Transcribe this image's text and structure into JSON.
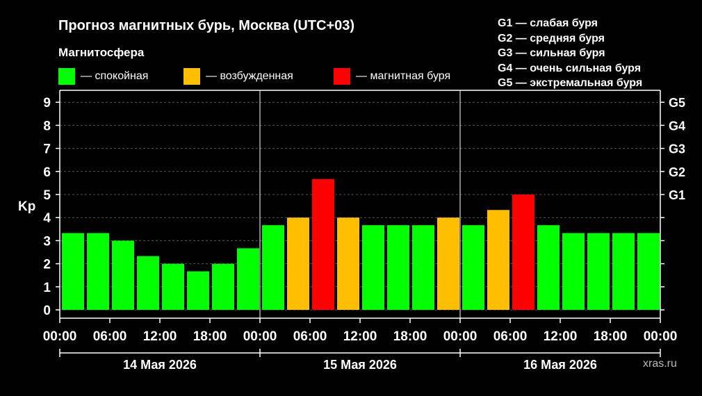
{
  "chart_data": {
    "type": "bar",
    "title": "Прогноз магнитных бурь, Москва (UTC+03)",
    "subtitle": "Магнитосфера",
    "ylabel": "Kp",
    "ylim": [
      0,
      9
    ],
    "yticks": [
      "0",
      "1",
      "2",
      "3",
      "4",
      "5",
      "6",
      "7",
      "8",
      "9"
    ],
    "right_ticks": [
      {
        "label": "G1",
        "value": 5
      },
      {
        "label": "G2",
        "value": 6
      },
      {
        "label": "G3",
        "value": 7
      },
      {
        "label": "G4",
        "value": 8
      },
      {
        "label": "G5",
        "value": 9
      }
    ],
    "xtick_labels": [
      "00:00",
      "06:00",
      "12:00",
      "18:00",
      "00:00",
      "06:00",
      "12:00",
      "18:00",
      "00:00",
      "06:00",
      "12:00",
      "18:00",
      "00:00"
    ],
    "days": [
      "14 Мая 2026",
      "15 Мая 2026",
      "16 Мая 2026"
    ],
    "categories": [
      "14 00:00",
      "14 03:00",
      "14 06:00",
      "14 09:00",
      "14 12:00",
      "14 15:00",
      "14 18:00",
      "14 21:00",
      "15 00:00",
      "15 03:00",
      "15 06:00",
      "15 09:00",
      "15 12:00",
      "15 15:00",
      "15 18:00",
      "15 21:00",
      "16 00:00",
      "16 03:00",
      "16 06:00",
      "16 09:00",
      "16 12:00",
      "16 15:00",
      "16 18:00",
      "16 21:00"
    ],
    "values": [
      3.33,
      3.33,
      3.0,
      2.33,
      2.0,
      1.67,
      2.0,
      2.67,
      3.67,
      4.0,
      5.67,
      4.0,
      3.67,
      3.67,
      3.67,
      4.0,
      3.67,
      4.33,
      5.0,
      3.67,
      3.33,
      3.33,
      3.33,
      3.33
    ],
    "legend": [
      {
        "label": "— спокойная",
        "color": "#00ff00"
      },
      {
        "label": "— возбужденная",
        "color": "#ffbf00"
      },
      {
        "label": "— магнитная буря",
        "color": "#ff0000"
      }
    ],
    "g_legend": [
      "G1 — слабая буря",
      "G2 — средняя буря",
      "G3 — сильная буря",
      "G4 — очень сильная буря",
      "G5 — экстремальная буря"
    ],
    "grid": true
  },
  "watermark": "xras.ru"
}
